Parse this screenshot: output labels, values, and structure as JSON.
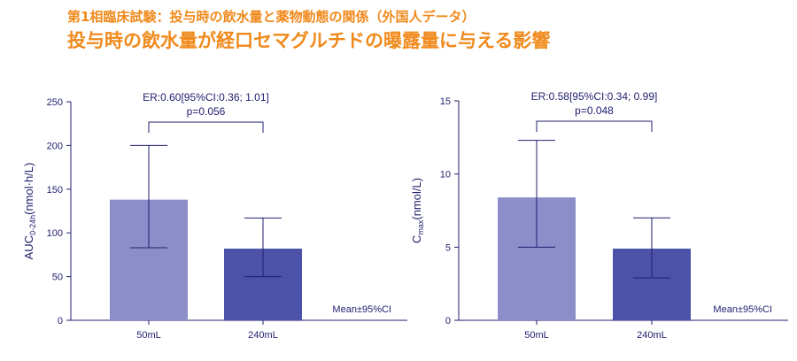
{
  "header": {
    "subtitle": "第1相臨床試験：投与時の飲水量と薬物動態の関係（外国人データ）",
    "title": "投与時の飲水量が経口セマグルチドの曝露量に与える影響"
  },
  "colors": {
    "bar_light": "#8b8ec9",
    "bar_dark": "#4b52a8",
    "axis": "#1f1f6e",
    "title": "#f08a1c"
  },
  "chart_data": [
    {
      "type": "bar",
      "categories": [
        "50mL",
        "240mL"
      ],
      "values": [
        138,
        82
      ],
      "ci_lower": [
        83,
        50
      ],
      "ci_upper": [
        200,
        117
      ],
      "ylabel_main": "AUC",
      "ylabel_sub": "0-24h",
      "ylabel_unit": "(nmol·h/L)",
      "ylim": [
        0,
        250
      ],
      "yticks": [
        0,
        50,
        100,
        150,
        200,
        250
      ],
      "stat_line1": "ER:0.60[95%CI:0.36; 1.01]",
      "stat_line2": "p=0.056",
      "note": "Mean±95%CI"
    },
    {
      "type": "bar",
      "categories": [
        "50mL",
        "240mL"
      ],
      "values": [
        8.4,
        4.9
      ],
      "ci_lower": [
        5.0,
        2.9
      ],
      "ci_upper": [
        12.3,
        7.0
      ],
      "ylabel_main": "C",
      "ylabel_sub": "max",
      "ylabel_unit": "(nmol/L)",
      "ylim": [
        0,
        15
      ],
      "yticks": [
        0,
        5,
        10,
        15
      ],
      "stat_line1": "ER:0.58[95%CI:0.34; 0.99]",
      "stat_line2": "p=0.048",
      "note": "Mean±95%CI"
    }
  ]
}
